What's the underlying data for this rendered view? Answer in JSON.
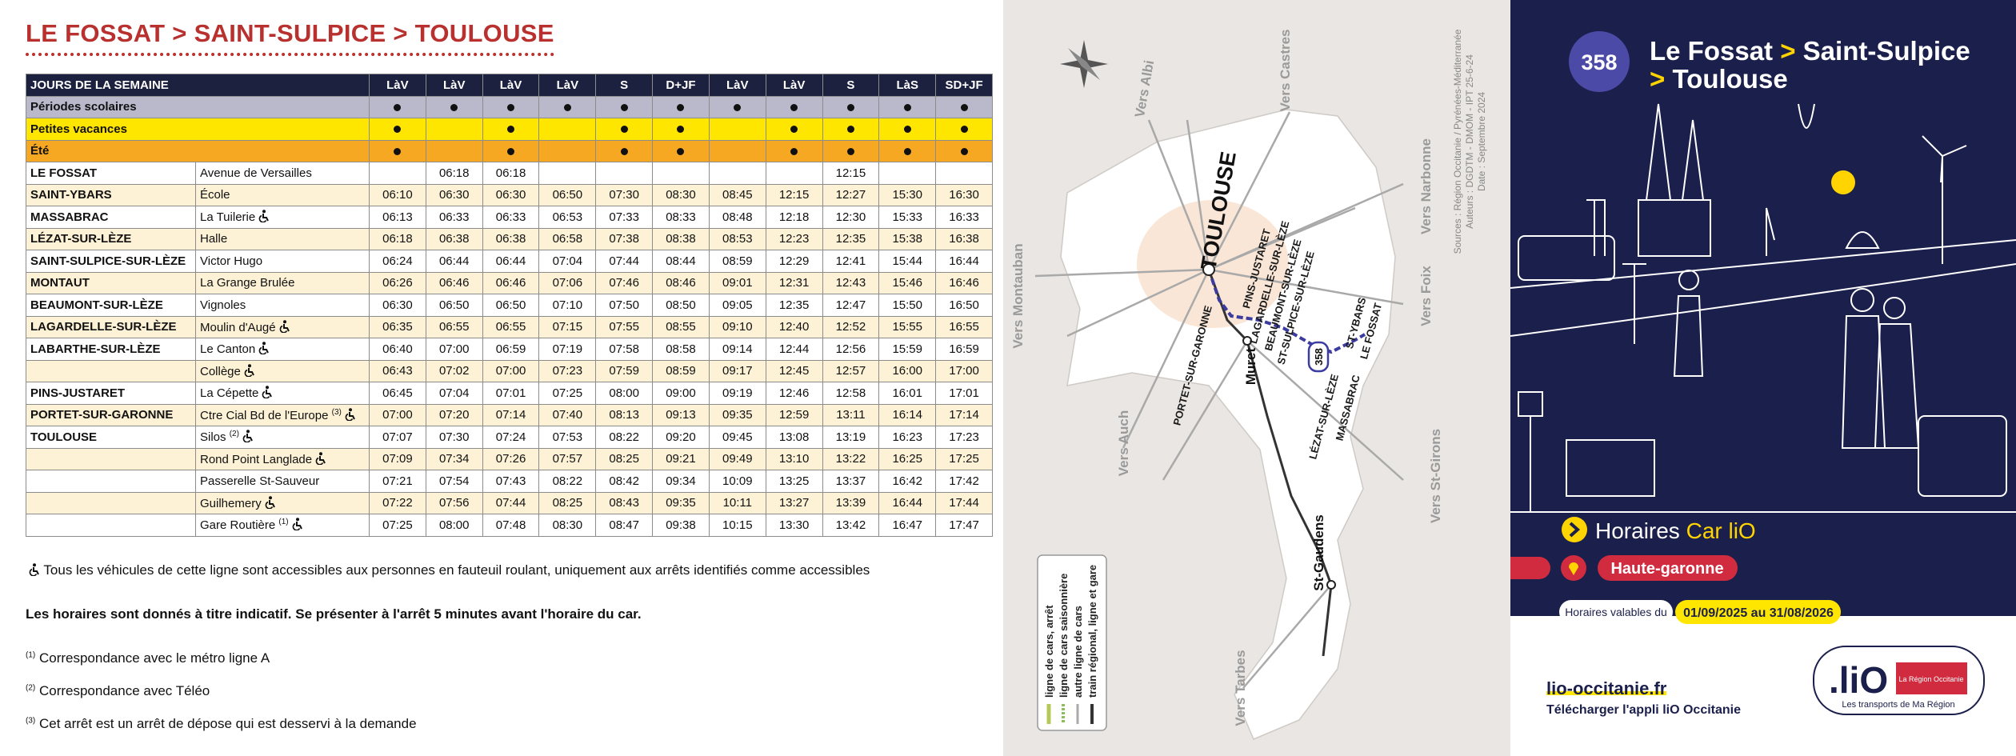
{
  "header": {
    "title": "LE FOSSAT > SAINT-SULPICE > TOULOUSE"
  },
  "table": {
    "header": "JOURS DE LA SEMAINE",
    "days": [
      "LàV",
      "LàV",
      "LàV",
      "LàV",
      "S",
      "D+JF",
      "LàV",
      "LàV",
      "S",
      "LàS",
      "SD+JF"
    ],
    "periods": [
      {
        "label": "Périodes scolaires",
        "color": "#b9b9cb",
        "marks": [
          true,
          true,
          true,
          true,
          true,
          true,
          true,
          true,
          true,
          true,
          true
        ]
      },
      {
        "label": "Petites vacances",
        "color": "#ffe600",
        "marks": [
          true,
          false,
          true,
          false,
          true,
          true,
          false,
          true,
          true,
          true,
          true
        ]
      },
      {
        "label": "Été",
        "color": "#f7a823",
        "marks": [
          true,
          false,
          true,
          false,
          true,
          true,
          false,
          true,
          true,
          true,
          true
        ]
      }
    ],
    "stops": [
      {
        "commune": "LE FOSSAT",
        "stop": "Avenue de Versailles",
        "accessible": false,
        "times": [
          null,
          "06:18",
          "06:18",
          null,
          null,
          null,
          null,
          null,
          "12:15",
          null,
          null
        ]
      },
      {
        "commune": "SAINT-YBARS",
        "stop": "École",
        "accessible": false,
        "times": [
          "06:10",
          "06:30",
          "06:30",
          "06:50",
          "07:30",
          "08:30",
          "08:45",
          "12:15",
          "12:27",
          "15:30",
          "16:30"
        ]
      },
      {
        "commune": "MASSABRAC",
        "stop": "La Tuilerie",
        "accessible": true,
        "times": [
          "06:13",
          "06:33",
          "06:33",
          "06:53",
          "07:33",
          "08:33",
          "08:48",
          "12:18",
          "12:30",
          "15:33",
          "16:33"
        ]
      },
      {
        "commune": "LÉZAT-SUR-LÈZE",
        "stop": "Halle",
        "accessible": false,
        "times": [
          "06:18",
          "06:38",
          "06:38",
          "06:58",
          "07:38",
          "08:38",
          "08:53",
          "12:23",
          "12:35",
          "15:38",
          "16:38"
        ]
      },
      {
        "commune": "SAINT-SULPICE-SUR-LÈZE",
        "stop": "Victor Hugo",
        "accessible": false,
        "times": [
          "06:24",
          "06:44",
          "06:44",
          "07:04",
          "07:44",
          "08:44",
          "08:59",
          "12:29",
          "12:41",
          "15:44",
          "16:44"
        ]
      },
      {
        "commune": "MONTAUT",
        "stop": "La Grange Brulée",
        "accessible": false,
        "times": [
          "06:26",
          "06:46",
          "06:46",
          "07:06",
          "07:46",
          "08:46",
          "09:01",
          "12:31",
          "12:43",
          "15:46",
          "16:46"
        ]
      },
      {
        "commune": "BEAUMONT-SUR-LÈZE",
        "stop": "Vignoles",
        "accessible": false,
        "times": [
          "06:30",
          "06:50",
          "06:50",
          "07:10",
          "07:50",
          "08:50",
          "09:05",
          "12:35",
          "12:47",
          "15:50",
          "16:50"
        ]
      },
      {
        "commune": "LAGARDELLE-SUR-LÈZE",
        "stop": "Moulin d'Augé",
        "accessible": true,
        "times": [
          "06:35",
          "06:55",
          "06:55",
          "07:15",
          "07:55",
          "08:55",
          "09:10",
          "12:40",
          "12:52",
          "15:55",
          "16:55"
        ]
      },
      {
        "commune": "LABARTHE-SUR-LÈZE",
        "stop": "Le Canton",
        "accessible": true,
        "times": [
          "06:40",
          "07:00",
          "06:59",
          "07:19",
          "07:58",
          "08:58",
          "09:14",
          "12:44",
          "12:56",
          "15:59",
          "16:59"
        ]
      },
      {
        "commune": null,
        "stop": "Collège",
        "accessible": true,
        "times": [
          "06:43",
          "07:02",
          "07:00",
          "07:23",
          "07:59",
          "08:59",
          "09:17",
          "12:45",
          "12:57",
          "16:00",
          "17:00"
        ]
      },
      {
        "commune": "PINS-JUSTARET",
        "stop": "La Cépette",
        "accessible": true,
        "times": [
          "06:45",
          "07:04",
          "07:01",
          "07:25",
          "08:00",
          "09:00",
          "09:19",
          "12:46",
          "12:58",
          "16:01",
          "17:01"
        ]
      },
      {
        "commune": "PORTET-SUR-GARONNE",
        "stop": "Ctre Cial Bd de l'Europe",
        "note": "(3)",
        "accessible": true,
        "times": [
          "07:00",
          "07:20",
          "07:14",
          "07:40",
          "08:13",
          "09:13",
          "09:35",
          "12:59",
          "13:11",
          "16:14",
          "17:14"
        ]
      },
      {
        "commune": "TOULOUSE",
        "stop": "Silos",
        "note": "(2)",
        "accessible": true,
        "times": [
          "07:07",
          "07:30",
          "07:24",
          "07:53",
          "08:22",
          "09:20",
          "09:45",
          "13:08",
          "13:19",
          "16:23",
          "17:23"
        ]
      },
      {
        "commune": null,
        "stop": "Rond Point Langlade",
        "accessible": true,
        "times": [
          "07:09",
          "07:34",
          "07:26",
          "07:57",
          "08:25",
          "09:21",
          "09:49",
          "13:10",
          "13:22",
          "16:25",
          "17:25"
        ]
      },
      {
        "commune": null,
        "stop": "Passerelle St-Sauveur",
        "accessible": false,
        "times": [
          "07:21",
          "07:54",
          "07:43",
          "08:22",
          "08:42",
          "09:34",
          "10:09",
          "13:25",
          "13:37",
          "16:42",
          "17:42"
        ]
      },
      {
        "commune": null,
        "stop": "Guilhemery",
        "accessible": true,
        "times": [
          "07:22",
          "07:56",
          "07:44",
          "08:25",
          "08:43",
          "09:35",
          "10:11",
          "13:27",
          "13:39",
          "16:44",
          "17:44"
        ]
      },
      {
        "commune": null,
        "stop": "Gare Routière",
        "note": "(1)",
        "accessible": true,
        "times": [
          "07:25",
          "08:00",
          "07:48",
          "08:30",
          "08:47",
          "09:38",
          "10:15",
          "13:30",
          "13:42",
          "16:47",
          "17:47"
        ]
      }
    ]
  },
  "notes": {
    "accessibility": "Tous les véhicules de cette ligne sont accessibles aux personnes en fauteuil roulant, uniquement aux arrêts identifiés comme accessibles",
    "indicative": "Les horaires sont donnés à titre indicatif. Se présenter à l'arrêt 5 minutes avant l'horaire du car.",
    "footnotes": [
      {
        "mark": "(1)",
        "text": "Correspondance avec le métro ligne A"
      },
      {
        "mark": "(2)",
        "text": "Correspondance avec Téléo"
      },
      {
        "mark": "(3)",
        "text": "Cet arrêt est un arrêt de dépose qui est desservi à la demande"
      }
    ]
  },
  "map": {
    "directions": [
      "Vers Albi",
      "Vers Castres",
      "Vers Narbonne",
      "Vers Foix",
      "Vers St-Girons",
      "Vers Tarbes",
      "Vers Auch",
      "Vers Montauban"
    ],
    "cities": [
      "TOULOUSE",
      "Muret",
      "St-Gaudens"
    ],
    "route_stops": [
      "PORTET-SUR-GARONNE",
      "PINS-JUSTARET",
      "LAGARDELLE-SUR-LÈZE",
      "BEAUMONT-SUR-LÈZE",
      "ST-SULPICE-SUR-LÈZE",
      "ST-YBARS",
      "LE FOSSAT",
      "LÉZAT-SUR-LÈZE",
      "MASSABRAC"
    ],
    "line": "358",
    "sources": [
      "Sources : Région Occitanie / Pyrénées-Méditerranée",
      "Auteurs : DGDTM - DMOM - IPT 25-6-24",
      "Date : Septembre 2024"
    ],
    "legend": [
      "ligne de cars, arrêt",
      "ligne de cars saisonnière",
      "autre ligne de cars",
      "train régional, ligne et gare"
    ]
  },
  "panel": {
    "line": "358",
    "title": [
      "Le Fossat",
      ">",
      "Saint-Sulpice",
      ">",
      "Toulouse"
    ],
    "service": {
      "label": "Horaires",
      "brand": "Car liO"
    },
    "department": "Haute-garonne",
    "validity": {
      "label": "Horaires valables du",
      "dates": "01/09/2025 au 31/08/2026"
    },
    "website": "lio-occitanie.fr",
    "app": "Télécharger l'appli liO Occitanie",
    "logo": {
      "name": ".liO",
      "region": "La Région Occitanie",
      "tagline": "Les transports de Ma Région"
    }
  }
}
